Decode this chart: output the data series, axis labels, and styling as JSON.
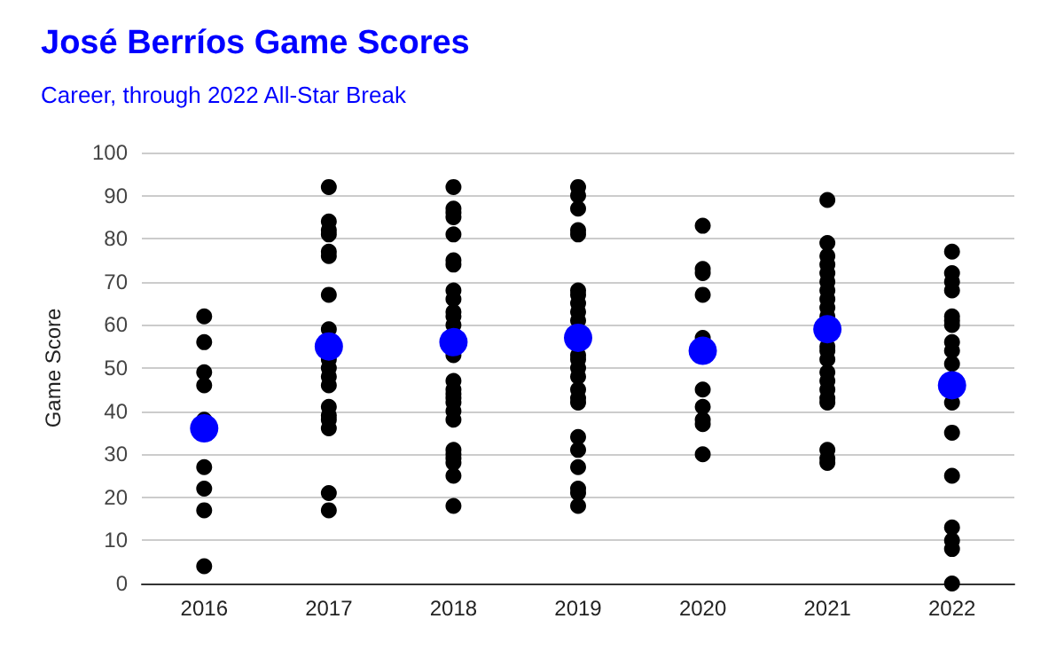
{
  "chart_data": {
    "type": "scatter",
    "title": "José Berríos Game Scores",
    "subtitle": "Career, through 2022 All-Star Break",
    "ylabel": "Game Score",
    "xlim": [
      2015.5,
      2022.5
    ],
    "xticks": [
      2016,
      2017,
      2018,
      2019,
      2020,
      2021,
      2022
    ],
    "ylim": [
      0,
      100
    ],
    "yticks": [
      0,
      10,
      20,
      30,
      40,
      50,
      60,
      70,
      80,
      90,
      100
    ],
    "grid": "y",
    "marker": "circle",
    "series": [
      {
        "color": "#000000",
        "x": [
          2016,
          2016,
          2016,
          2016,
          2016,
          2016,
          2016,
          2016,
          2016,
          2017,
          2017,
          2017,
          2017,
          2017,
          2017,
          2017,
          2017,
          2017,
          2017,
          2017,
          2017,
          2017,
          2017,
          2017,
          2017,
          2017,
          2017,
          2018,
          2018,
          2018,
          2018,
          2018,
          2018,
          2018,
          2018,
          2018,
          2018,
          2018,
          2018,
          2018,
          2018,
          2018,
          2018,
          2018,
          2018,
          2018,
          2018,
          2018,
          2018,
          2018,
          2018,
          2018,
          2018,
          2019,
          2019,
          2019,
          2019,
          2019,
          2019,
          2019,
          2019,
          2019,
          2019,
          2019,
          2019,
          2019,
          2019,
          2019,
          2019,
          2019,
          2019,
          2019,
          2019,
          2019,
          2019,
          2019,
          2020,
          2020,
          2020,
          2020,
          2020,
          2020,
          2020,
          2020,
          2020,
          2020,
          2021,
          2021,
          2021,
          2021,
          2021,
          2021,
          2021,
          2021,
          2021,
          2021,
          2021,
          2021,
          2021,
          2021,
          2021,
          2021,
          2021,
          2021,
          2021,
          2021,
          2021,
          2022,
          2022,
          2022,
          2022,
          2022,
          2022,
          2022,
          2022,
          2022,
          2022,
          2022,
          2022,
          2022,
          2022,
          2022,
          2022,
          2022
        ],
        "values": [
          62,
          56,
          49,
          46,
          38,
          27,
          22,
          17,
          4,
          92,
          84,
          82,
          81,
          77,
          76,
          67,
          59,
          52,
          50,
          48,
          46,
          41,
          39,
          38,
          36,
          21,
          17,
          92,
          87,
          86,
          85,
          81,
          75,
          74,
          68,
          66,
          63,
          62,
          60,
          53,
          47,
          45,
          44,
          43,
          42,
          40,
          38,
          31,
          30,
          29,
          28,
          25,
          18,
          92,
          90,
          87,
          82,
          81,
          68,
          67,
          65,
          63,
          61,
          53,
          52,
          50,
          48,
          45,
          43,
          42,
          34,
          31,
          27,
          22,
          21,
          18,
          83,
          73,
          72,
          67,
          57,
          45,
          41,
          38,
          37,
          30,
          89,
          79,
          76,
          74,
          72,
          70,
          68,
          66,
          64,
          62,
          55,
          54,
          52,
          49,
          47,
          45,
          43,
          42,
          31,
          29,
          28,
          77,
          72,
          70,
          68,
          62,
          61,
          60,
          56,
          54,
          51,
          42,
          35,
          25,
          13,
          10,
          8,
          0
        ]
      },
      {
        "color": "#0000ff",
        "x": [
          2016,
          2017,
          2018,
          2019,
          2020,
          2021,
          2022
        ],
        "values": [
          36,
          55,
          56,
          57,
          54,
          59,
          46
        ]
      }
    ]
  }
}
